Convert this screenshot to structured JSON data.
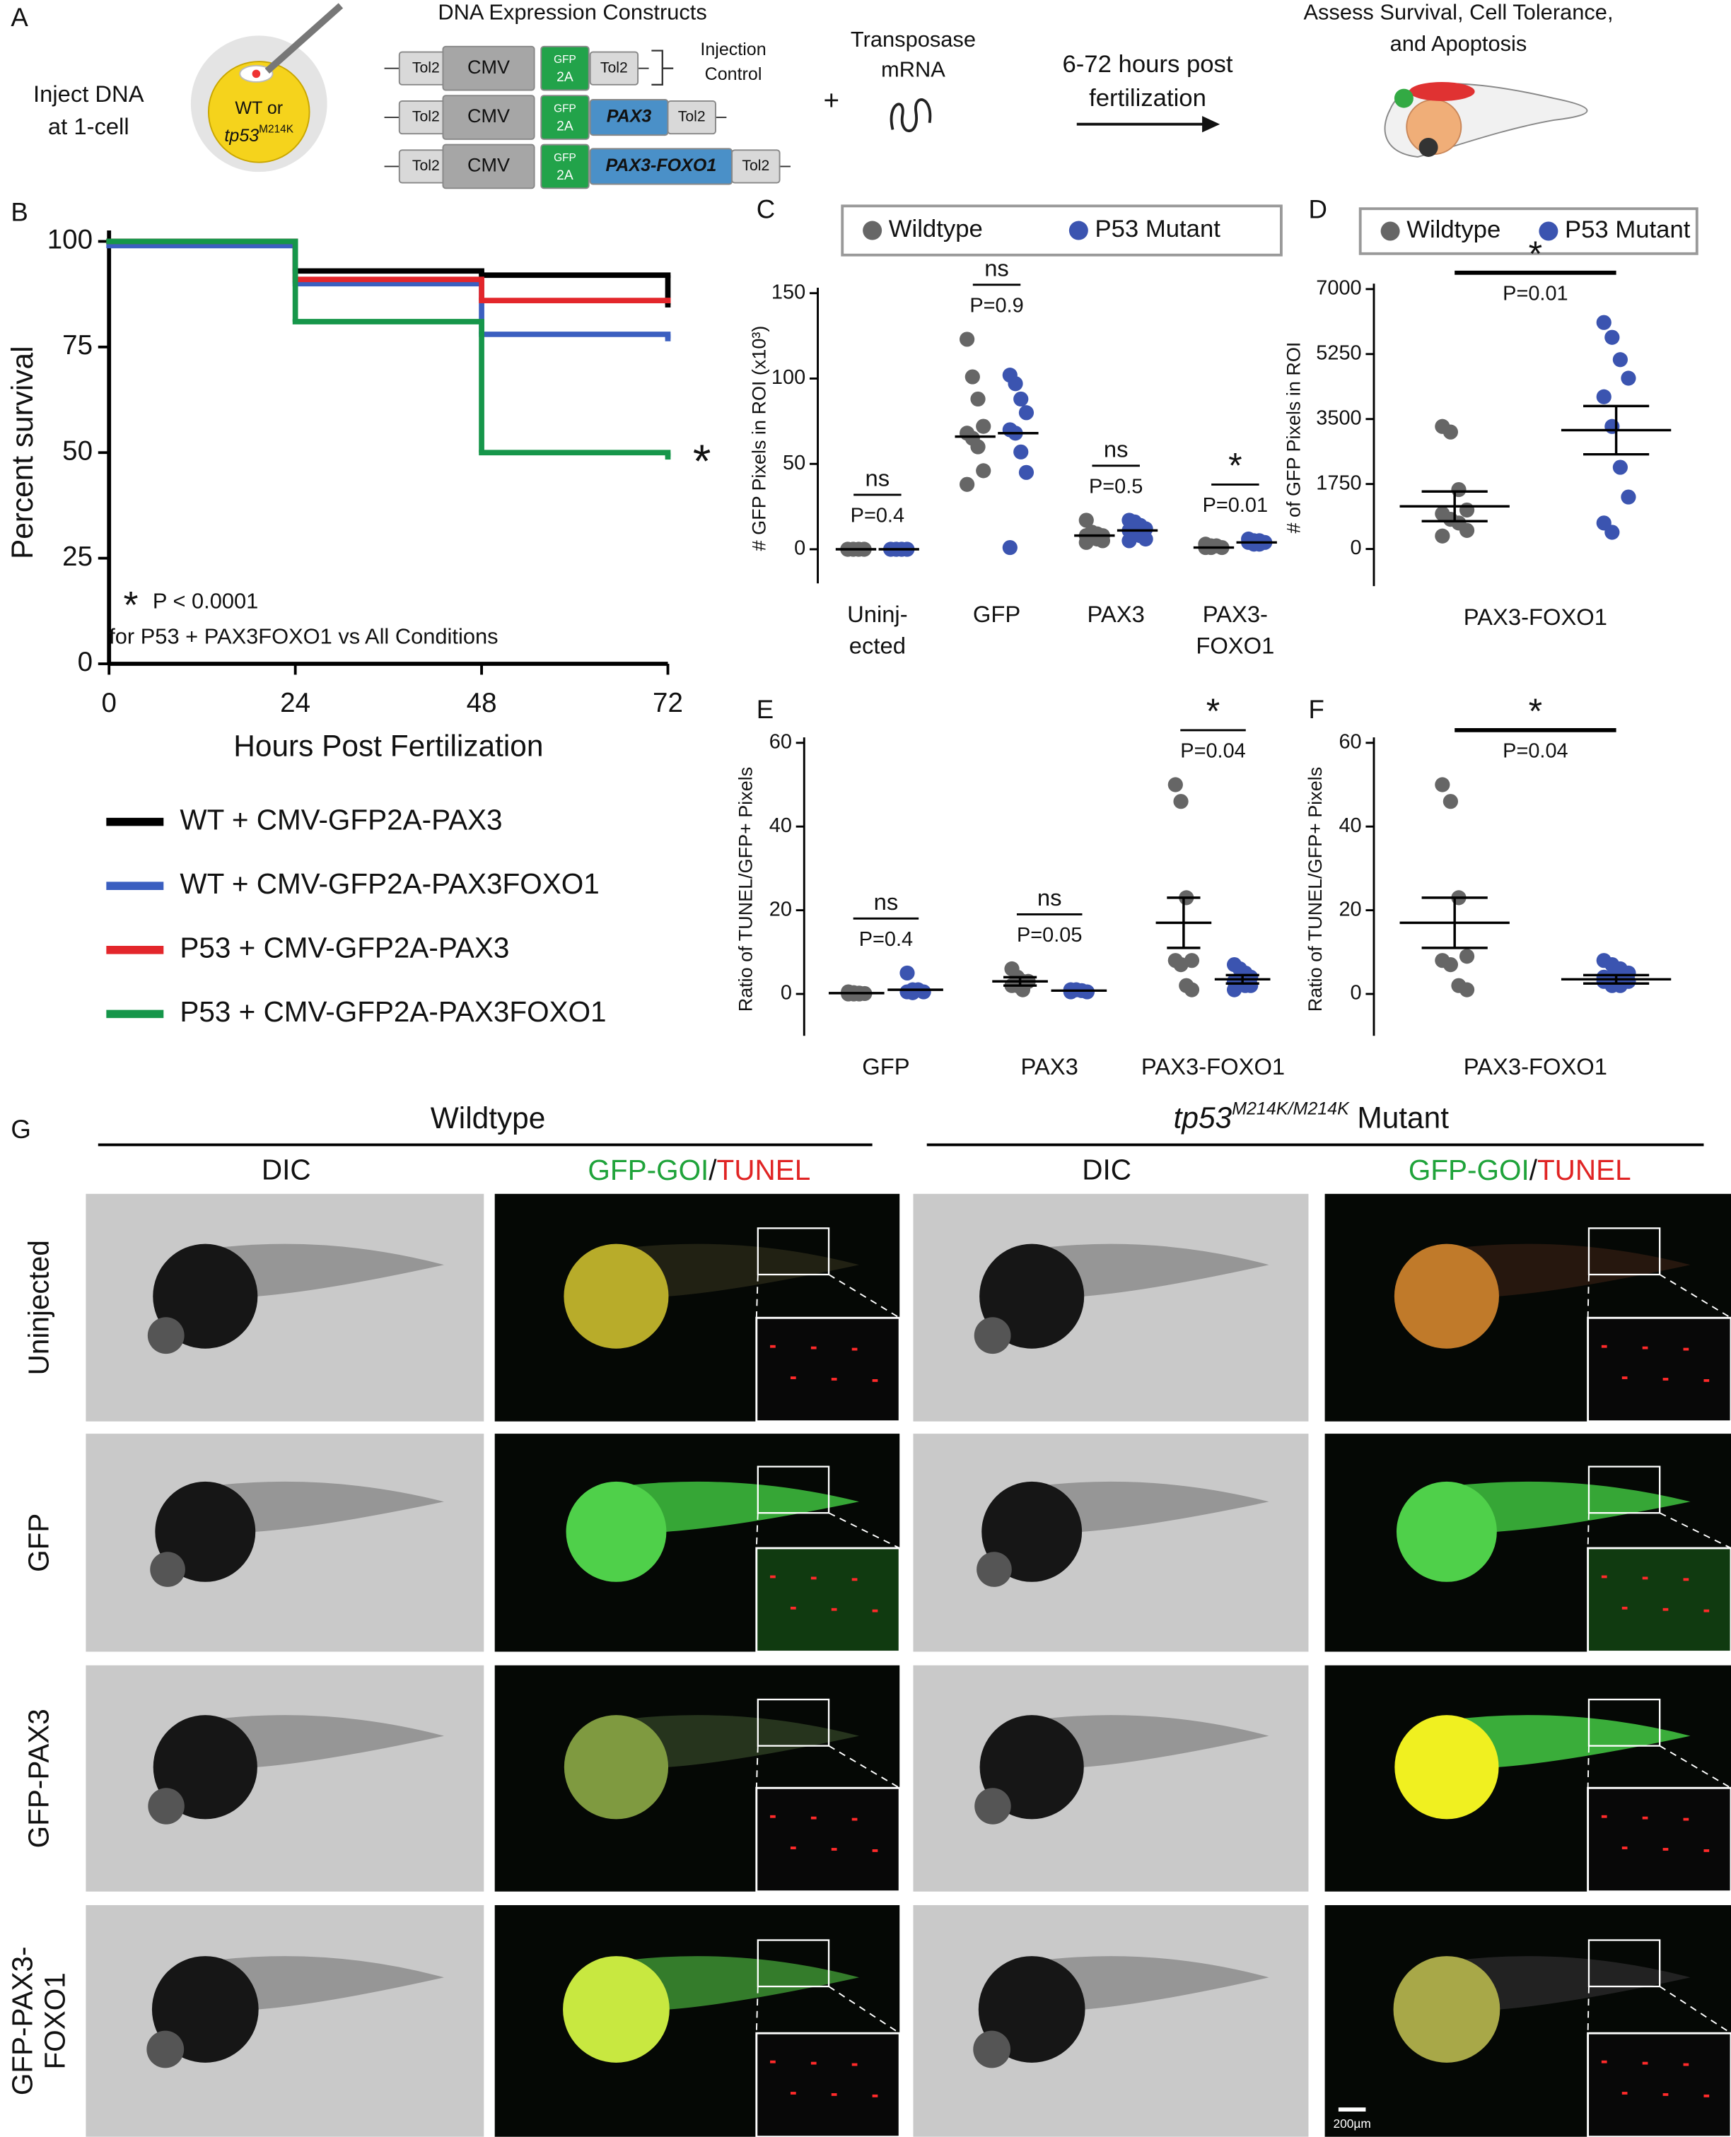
{
  "panel_a": {
    "label": "A",
    "inject": [
      "Inject DNA",
      "at 1-cell"
    ],
    "egg": [
      "WT or",
      "tp53",
      "M214K"
    ],
    "constructs_title": "DNA Expression Constructs",
    "constructs": [
      [
        "Tol2",
        "CMV",
        [
          "GFP",
          "2A"
        ],
        "Tol2"
      ],
      [
        "Tol2",
        "CMV",
        [
          "GFP",
          "2A"
        ],
        "PAX3",
        "Tol2"
      ],
      [
        "Tol2",
        "CMV",
        [
          "GFP",
          "2A"
        ],
        "PAX3-FOXO1",
        "Tol2"
      ]
    ],
    "injection_control": [
      "Injection",
      "Control"
    ],
    "plus": "+",
    "transposase": [
      "Transposase",
      "mRNA"
    ],
    "timing": [
      "6-72 hours post",
      "fertilization"
    ],
    "assess": [
      "Assess Survival, Cell Tolerance,",
      "and Apoptosis"
    ]
  },
  "chart_data": [
    {
      "panel": "B",
      "type": "step",
      "x": [
        0,
        24,
        48,
        72
      ],
      "xlim": [
        0,
        72
      ],
      "xticks": [
        0,
        24,
        48,
        72
      ],
      "ylim": [
        0,
        100
      ],
      "yticks": [
        0,
        25,
        50,
        75,
        100
      ],
      "xlabel": "Hours Post Fertilization",
      "ylabel": "Percent survival",
      "series": [
        {
          "name": "WT + CMV-GFP2A-PAX3",
          "color": "#000000",
          "values": [
            100,
            93,
            92,
            85
          ]
        },
        {
          "name": "WT + CMV-GFP2A-PAX3FOXO1",
          "color": "#3b5fc0",
          "values": [
            99,
            90,
            78,
            77
          ]
        },
        {
          "name": "P53 + CMV-GFP2A-PAX3",
          "color": "#e3262b",
          "values": [
            100,
            91,
            86,
            86
          ]
        },
        {
          "name": "P53 + CMV-GFP2A-PAX3FOXO1",
          "color": "#16964a",
          "values": [
            100,
            81,
            50,
            49
          ]
        }
      ],
      "significance": "*",
      "annotation": {
        "mark": "*",
        "lines": [
          "P < 0.0001",
          "for P53 + PAX3FOXO1 vs All Conditions"
        ]
      }
    },
    {
      "panel": "C",
      "type": "strip",
      "categories": [
        [
          "Uninj-",
          "ected"
        ],
        [
          "GFP"
        ],
        [
          "PAX3"
        ],
        [
          "PAX3-",
          "FOXO1"
        ]
      ],
      "ylim": [
        -20,
        150
      ],
      "yticks": [
        0,
        50,
        100,
        150
      ],
      "ylabel": "# GFP Pixels in ROI (x10³)",
      "series": [
        {
          "name": "Wildtype",
          "color": "#666666",
          "values": [
            [
              0,
              0,
              0,
              0,
              0,
              0,
              0,
              0,
              0
            ],
            [
              123,
              101,
              88,
              72,
              68,
              65,
              60,
              46,
              38
            ],
            [
              17,
              10,
              9,
              8,
              8,
              7,
              6,
              5,
              4
            ],
            [
              3,
              2,
              2,
              1,
              1,
              1
            ]
          ],
          "means": [
            0,
            66,
            8,
            1
          ]
        },
        {
          "name": "P53 Mutant",
          "color": "#3b54b0",
          "values": [
            [
              0,
              0,
              0,
              0,
              0,
              0,
              0,
              0
            ],
            [
              102,
              97,
              88,
              80,
              70,
              68,
              57,
              45,
              1
            ],
            [
              17,
              16,
              14,
              12,
              11,
              10,
              8,
              6,
              5
            ],
            [
              6,
              5,
              5,
              4,
              4,
              3,
              3
            ]
          ],
          "means": [
            0,
            68,
            11,
            4
          ]
        }
      ],
      "stats": [
        {
          "sig": "ns",
          "p": "P=0.4"
        },
        {
          "sig": "ns",
          "p": "P=0.9"
        },
        {
          "sig": "ns",
          "p": "P=0.5"
        },
        {
          "sig": "*",
          "p": "P=0.01"
        }
      ]
    },
    {
      "panel": "D",
      "type": "strip",
      "categories": [
        [
          "PAX3-FOXO1"
        ]
      ],
      "ylim": [
        -1000,
        7000
      ],
      "yticks": [
        0,
        1750,
        3500,
        5250,
        7000
      ],
      "ylabel": "# of GFP Pixels in ROI",
      "series": [
        {
          "name": "Wildtype",
          "color": "#666666",
          "values": [
            [
              3300,
              3150,
              1600,
              1050,
              950,
              800,
              700,
              500,
              350
            ]
          ],
          "means": [
            1150
          ],
          "errors": [
            400
          ]
        },
        {
          "name": "P53 Mutant",
          "color": "#3b54b0",
          "values": [
            [
              6100,
              5700,
              5100,
              4600,
              4100,
              3300,
              2200,
              1400,
              700,
              450
            ]
          ],
          "means": [
            3200
          ],
          "errors": [
            650
          ]
        }
      ],
      "stats": [
        {
          "sig": "*",
          "p": "P=0.01"
        }
      ]
    },
    {
      "panel": "E",
      "type": "strip",
      "categories": [
        [
          "GFP"
        ],
        [
          "PAX3"
        ],
        [
          "PAX3-FOXO1"
        ]
      ],
      "ylim": [
        -10,
        60
      ],
      "yticks": [
        0,
        20,
        40,
        60
      ],
      "ylabel": "Ratio of TUNEL/GFP+ Pixels",
      "series": [
        {
          "color": "#666666",
          "values": [
            [
              0.5,
              0.3,
              0.2,
              0.1,
              0,
              0,
              0
            ],
            [
              6,
              4,
              3,
              3,
              2,
              2,
              1
            ],
            [
              50,
              46,
              23,
              8,
              8,
              7,
              2,
              1
            ]
          ],
          "means": [
            0.2,
            3,
            17
          ],
          "errors": [
            null,
            1,
            6
          ]
        },
        {
          "color": "#3b54b0",
          "values": [
            [
              5,
              1,
              1,
              0.5,
              0.5,
              0.3
            ],
            [
              1,
              1,
              0.8,
              0.5,
              0.5
            ],
            [
              7,
              6,
              5,
              4,
              3,
              3,
              2,
              2,
              1
            ]
          ],
          "means": [
            1,
            0.8,
            3.5
          ],
          "errors": [
            null,
            null,
            1
          ]
        }
      ],
      "stats": [
        {
          "sig": "ns",
          "p": "P=0.4"
        },
        {
          "sig": "ns",
          "p": "P=0.05"
        },
        {
          "sig": "*",
          "p": "P=0.04"
        }
      ]
    },
    {
      "panel": "F",
      "type": "strip",
      "categories": [
        [
          "PAX3-FOXO1"
        ]
      ],
      "ylim": [
        -10,
        60
      ],
      "yticks": [
        0,
        20,
        40,
        60
      ],
      "ylabel": "Ratio of TUNEL/GFP+ Pixels",
      "series": [
        {
          "color": "#666666",
          "values": [
            [
              50,
              46,
              23,
              9,
              8,
              7,
              2,
              1
            ]
          ],
          "means": [
            17
          ],
          "errors": [
            6
          ]
        },
        {
          "color": "#3b54b0",
          "values": [
            [
              8,
              7,
              6,
              5,
              4,
              4,
              3,
              3,
              3,
              2,
              2
            ]
          ],
          "means": [
            3.5
          ],
          "errors": [
            1
          ]
        }
      ],
      "stats": [
        {
          "sig": "*",
          "p": "P=0.04"
        }
      ]
    }
  ],
  "panel_g": {
    "label": "G",
    "groups": [
      [
        "Wildtype"
      ],
      [
        "tp53",
        "M214K/M214K",
        "Mutant"
      ]
    ],
    "columns": [
      "DIC",
      [
        "GFP-GOI",
        "/",
        "TUNEL"
      ]
    ],
    "rows": [
      [
        "Uninjected"
      ],
      [
        "GFP"
      ],
      [
        "GFP-PAX3"
      ],
      [
        "GFP-PAX3-",
        "FOXO1"
      ]
    ],
    "scale_bar": "200µm"
  }
}
